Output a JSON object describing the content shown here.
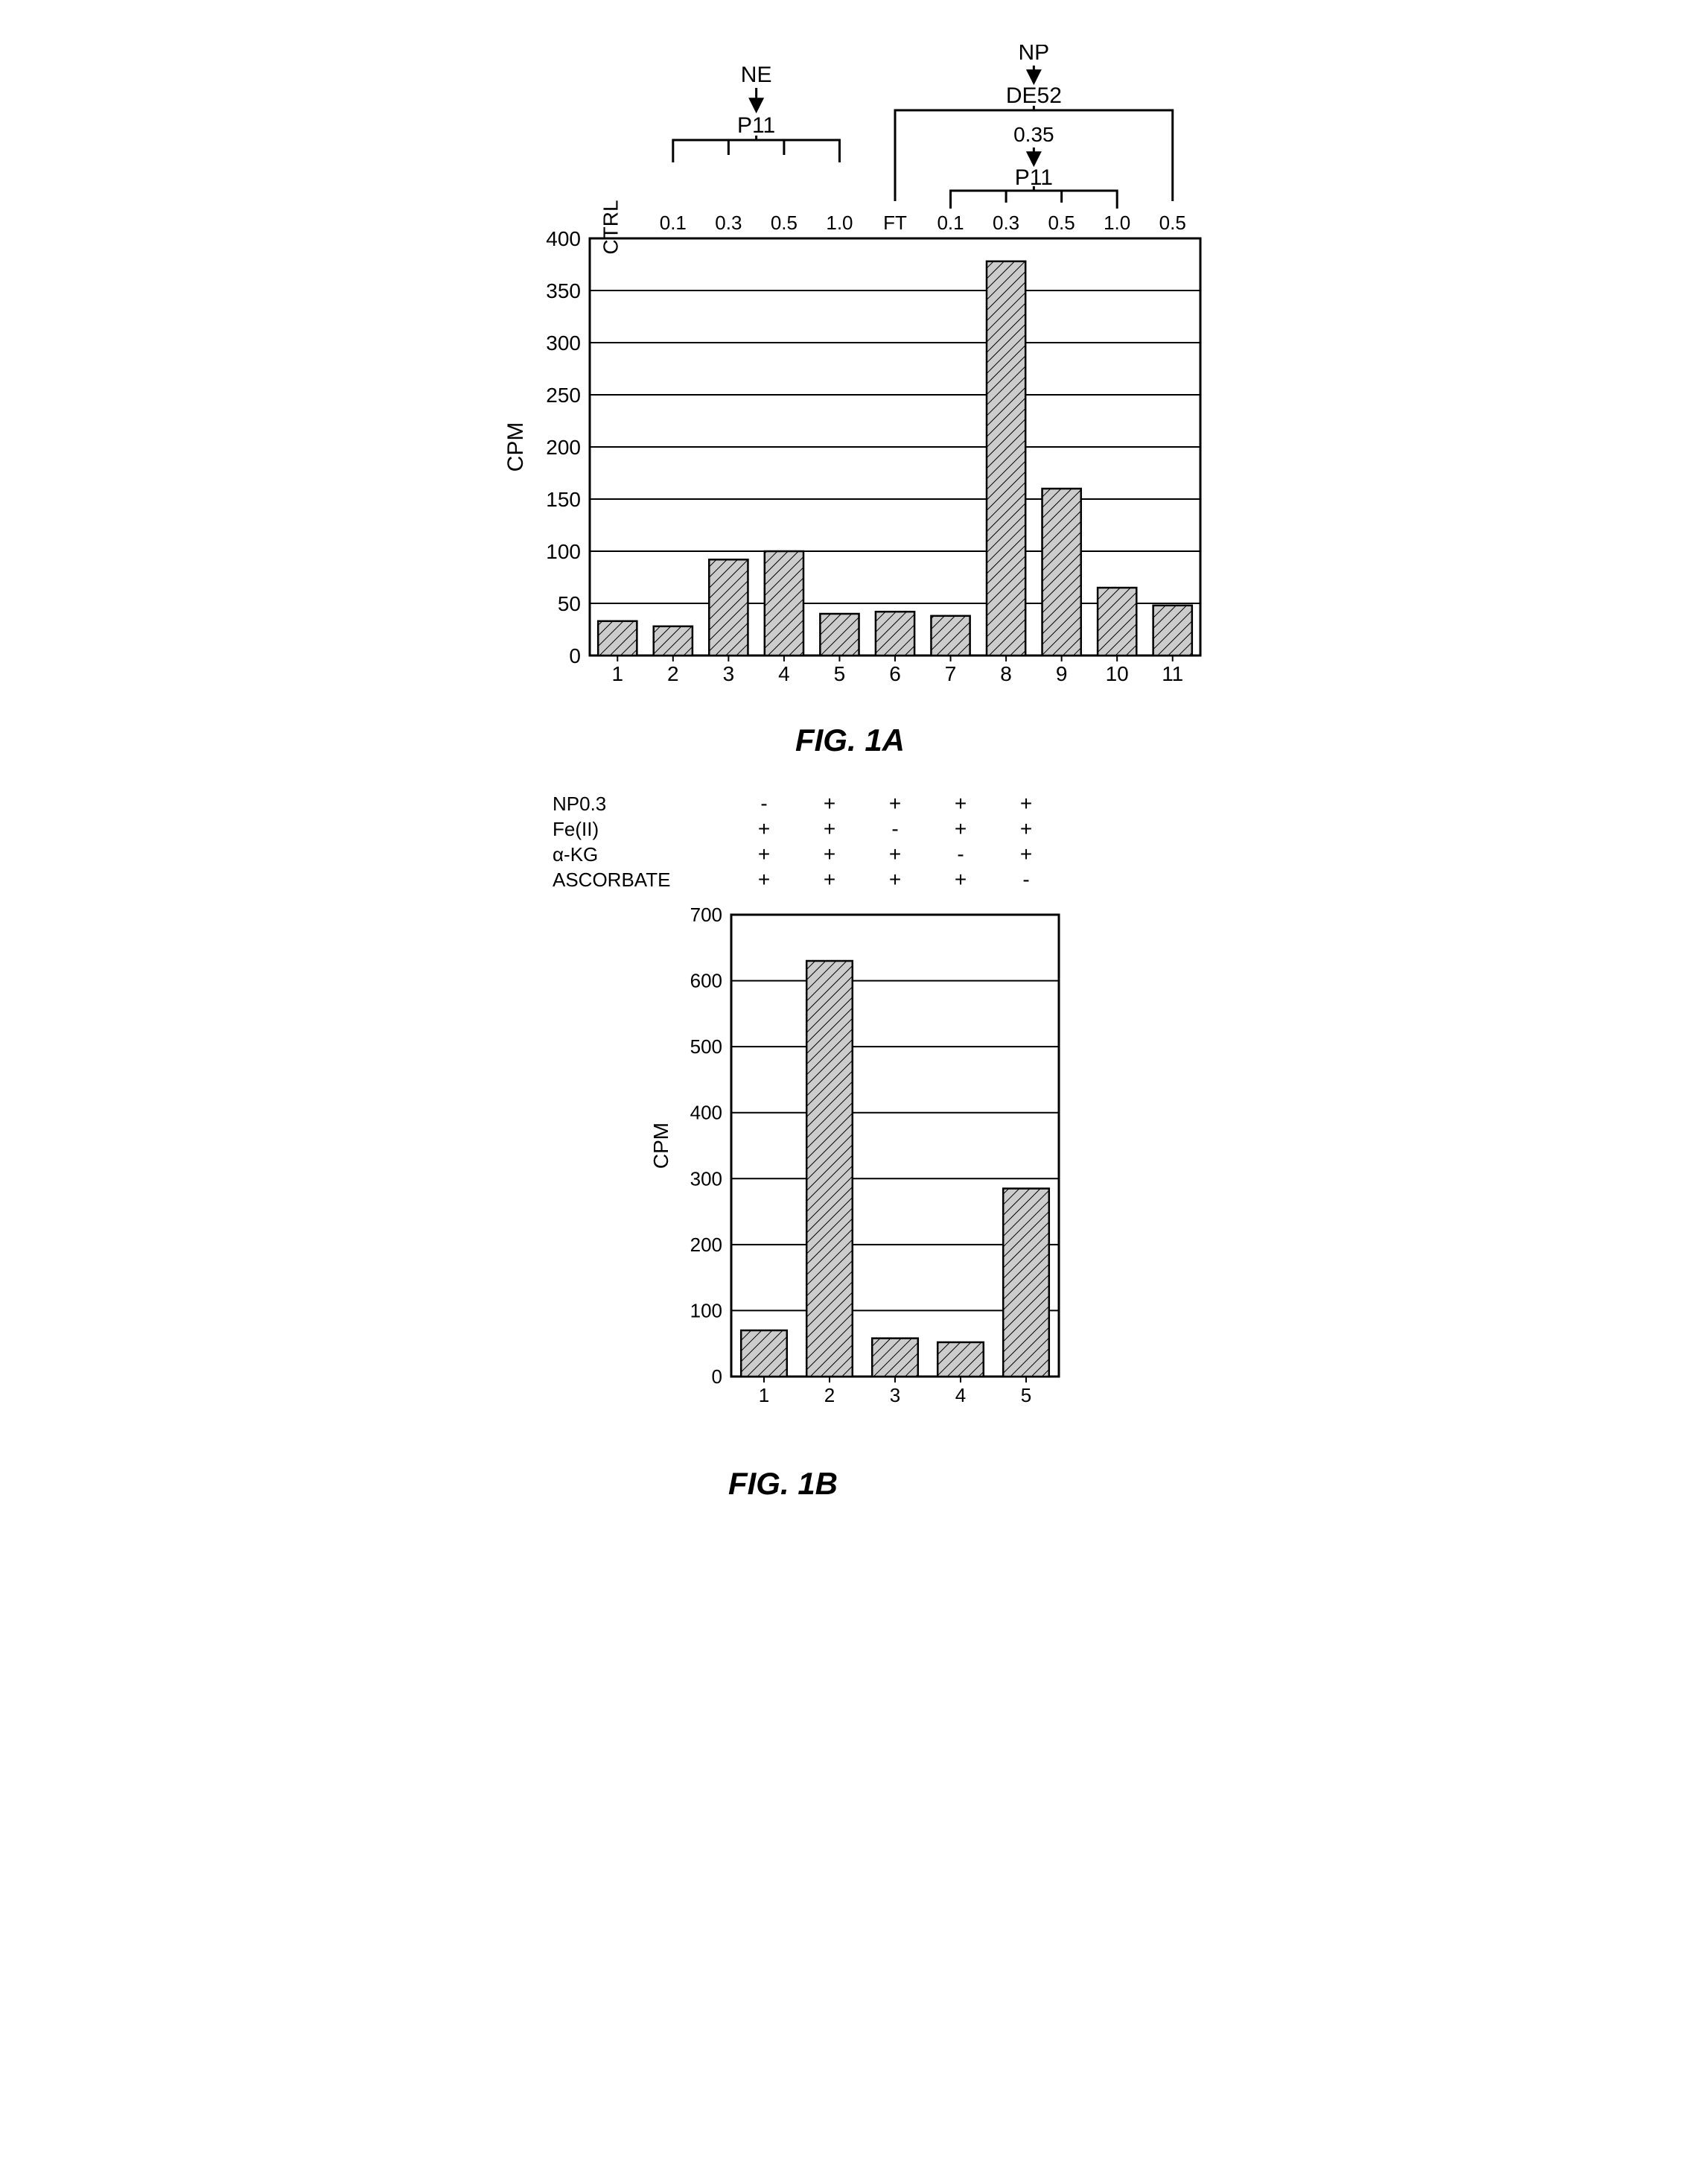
{
  "colors": {
    "background": "#ffffff",
    "stroke": "#000000",
    "bar_fill": "#cccccc",
    "bar_stroke": "#000000",
    "grid": "#000000"
  },
  "fig1a": {
    "type": "bar",
    "title": "FIG. 1A",
    "ylabel": "CPM",
    "ylim": [
      0,
      400
    ],
    "ytick_step": 50,
    "yticks": [
      0,
      50,
      100,
      150,
      200,
      250,
      300,
      350,
      400
    ],
    "bar_width": 0.7,
    "categories": [
      1,
      2,
      3,
      4,
      5,
      6,
      7,
      8,
      9,
      10,
      11
    ],
    "values": [
      33,
      28,
      92,
      100,
      40,
      42,
      38,
      378,
      160,
      65,
      48
    ],
    "stroke_width": 3,
    "label_fontsize": 30,
    "tick_fontsize": 28,
    "header": {
      "ctrl_label": "CTRL",
      "left": {
        "top": "NE",
        "bottom": "P11",
        "ticks": [
          "0.1",
          "0.3",
          "0.5",
          "1.0"
        ]
      },
      "right": {
        "top": "NP",
        "mid": "DE52",
        "val": "0.35",
        "bottom": "P11",
        "ft_label": "FT",
        "ticks": [
          "0.1",
          "0.3",
          "0.5",
          "1.0",
          "0.5"
        ]
      }
    }
  },
  "fig1b": {
    "type": "bar",
    "title": "FIG. 1B",
    "ylabel": "CPM",
    "ylim": [
      0,
      700
    ],
    "ytick_step": 100,
    "yticks": [
      0,
      100,
      200,
      300,
      400,
      500,
      600,
      700
    ],
    "bar_width": 0.7,
    "categories": [
      1,
      2,
      3,
      4,
      5
    ],
    "values": [
      70,
      630,
      58,
      52,
      285
    ],
    "stroke_width": 3,
    "label_fontsize": 28,
    "tick_fontsize": 26,
    "conditions": {
      "rows": [
        {
          "label": "NP0.3",
          "vals": [
            "-",
            "+",
            "+",
            "+",
            "+"
          ]
        },
        {
          "label": "Fe(II)",
          "vals": [
            "+",
            "+",
            "-",
            "+",
            "+"
          ]
        },
        {
          "label": "α-KG",
          "vals": [
            "+",
            "+",
            "+",
            "-",
            "+"
          ]
        },
        {
          "label": "ASCORBATE",
          "vals": [
            "+",
            "+",
            "+",
            "+",
            "-"
          ]
        }
      ]
    }
  }
}
